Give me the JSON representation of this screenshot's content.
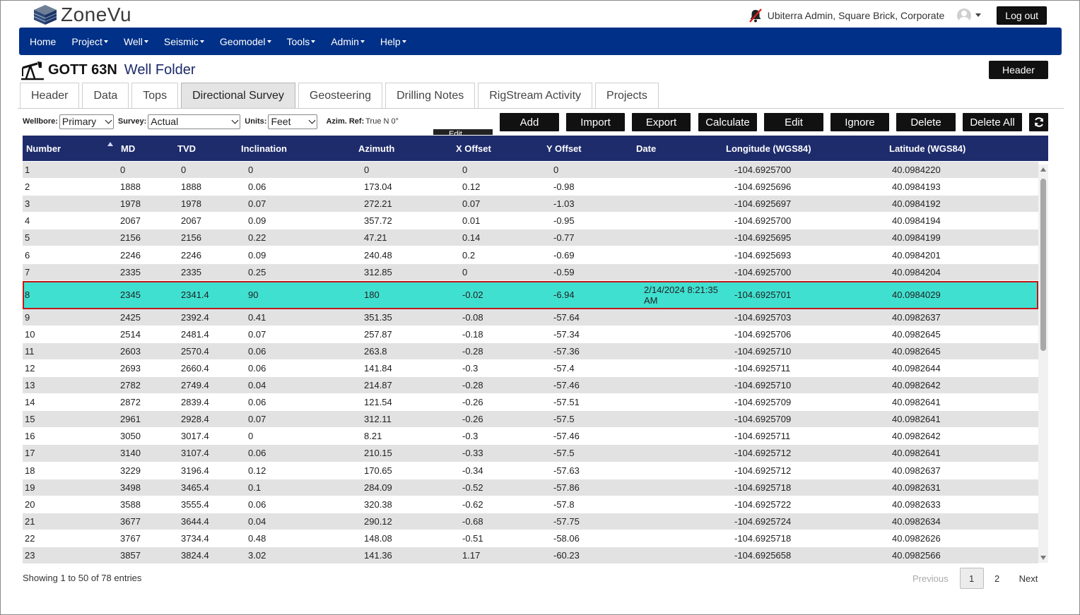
{
  "app": {
    "name": "ZoneVu"
  },
  "user": {
    "name": "Ubiterra Admin, Square Brick, Corporate",
    "logout_label": "Log out"
  },
  "nav": [
    {
      "label": "Home",
      "dropdown": false
    },
    {
      "label": "Project",
      "dropdown": true
    },
    {
      "label": "Well",
      "dropdown": true
    },
    {
      "label": "Seismic",
      "dropdown": true
    },
    {
      "label": "Geomodel",
      "dropdown": true
    },
    {
      "label": "Tools",
      "dropdown": true
    },
    {
      "label": "Admin",
      "dropdown": true
    },
    {
      "label": "Help",
      "dropdown": true
    }
  ],
  "well": {
    "name": "GOTT 63N",
    "folder_label": "Well Folder",
    "header_button": "Header"
  },
  "tabs": [
    {
      "label": "Header",
      "active": false
    },
    {
      "label": "Data",
      "active": false
    },
    {
      "label": "Tops",
      "active": false
    },
    {
      "label": "Directional Survey",
      "active": true
    },
    {
      "label": "Geosteering",
      "active": false
    },
    {
      "label": "Drilling Notes",
      "active": false
    },
    {
      "label": "RigStream Activity",
      "active": false
    },
    {
      "label": "Projects",
      "active": false
    }
  ],
  "filters": {
    "wellbore_label": "Wellbore:",
    "wellbore_value": "Primary",
    "survey_label": "Survey:",
    "survey_value": "Actual",
    "units_label": "Units:",
    "units_value": "Feet",
    "azim_label": "Azim. Ref:",
    "azim_value": "True N 0°",
    "edit_stub": "Edit"
  },
  "actions": [
    "Add",
    "Import",
    "Export",
    "Calculate",
    "Edit",
    "Ignore",
    "Delete",
    "Delete All"
  ],
  "columns": [
    "Number",
    "MD",
    "TVD",
    "Inclination",
    "Azimuth",
    "X Offset",
    "Y Offset",
    "Date",
    "Longitude (WGS84)",
    "Latitude (WGS84)"
  ],
  "rows": [
    [
      "1",
      "0",
      "0",
      "0",
      "0",
      "0",
      "0",
      "",
      "-104.6925700",
      "40.0984220"
    ],
    [
      "2",
      "1888",
      "1888",
      "0.06",
      "173.04",
      "0.12",
      "-0.98",
      "",
      "-104.6925696",
      "40.0984193"
    ],
    [
      "3",
      "1978",
      "1978",
      "0.07",
      "272.21",
      "0.07",
      "-1.03",
      "",
      "-104.6925697",
      "40.0984192"
    ],
    [
      "4",
      "2067",
      "2067",
      "0.09",
      "357.72",
      "0.01",
      "-0.95",
      "",
      "-104.6925700",
      "40.0984194"
    ],
    [
      "5",
      "2156",
      "2156",
      "0.22",
      "47.21",
      "0.14",
      "-0.77",
      "",
      "-104.6925695",
      "40.0984199"
    ],
    [
      "6",
      "2246",
      "2246",
      "0.09",
      "240.48",
      "0.2",
      "-0.69",
      "",
      "-104.6925693",
      "40.0984201"
    ],
    [
      "7",
      "2335",
      "2335",
      "0.25",
      "312.85",
      "0",
      "-0.59",
      "",
      "-104.6925700",
      "40.0984204"
    ],
    [
      "8",
      "2345",
      "2341.4",
      "90",
      "180",
      "-0.02",
      "-6.94",
      "2/14/2024 8:21:35 AM",
      "-104.6925701",
      "40.0984029"
    ],
    [
      "9",
      "2425",
      "2392.4",
      "0.41",
      "351.35",
      "-0.08",
      "-57.64",
      "",
      "-104.6925703",
      "40.0982637"
    ],
    [
      "10",
      "2514",
      "2481.4",
      "0.07",
      "257.87",
      "-0.18",
      "-57.34",
      "",
      "-104.6925706",
      "40.0982645"
    ],
    [
      "11",
      "2603",
      "2570.4",
      "0.06",
      "263.8",
      "-0.28",
      "-57.36",
      "",
      "-104.6925710",
      "40.0982645"
    ],
    [
      "12",
      "2693",
      "2660.4",
      "0.06",
      "141.84",
      "-0.3",
      "-57.4",
      "",
      "-104.6925711",
      "40.0982644"
    ],
    [
      "13",
      "2782",
      "2749.4",
      "0.04",
      "214.87",
      "-0.28",
      "-57.46",
      "",
      "-104.6925710",
      "40.0982642"
    ],
    [
      "14",
      "2872",
      "2839.4",
      "0.06",
      "121.54",
      "-0.26",
      "-57.51",
      "",
      "-104.6925709",
      "40.0982641"
    ],
    [
      "15",
      "2961",
      "2928.4",
      "0.07",
      "312.11",
      "-0.26",
      "-57.5",
      "",
      "-104.6925709",
      "40.0982641"
    ],
    [
      "16",
      "3050",
      "3017.4",
      "0",
      "8.21",
      "-0.3",
      "-57.46",
      "",
      "-104.6925711",
      "40.0982642"
    ],
    [
      "17",
      "3140",
      "3107.4",
      "0.06",
      "210.15",
      "-0.33",
      "-57.5",
      "",
      "-104.6925712",
      "40.0982641"
    ],
    [
      "18",
      "3229",
      "3196.4",
      "0.12",
      "170.65",
      "-0.34",
      "-57.63",
      "",
      "-104.6925712",
      "40.0982637"
    ],
    [
      "19",
      "3498",
      "3465.4",
      "0.1",
      "284.09",
      "-0.52",
      "-57.86",
      "",
      "-104.6925718",
      "40.0982631"
    ],
    [
      "20",
      "3588",
      "3555.4",
      "0.06",
      "320.38",
      "-0.62",
      "-57.8",
      "",
      "-104.6925722",
      "40.0982633"
    ],
    [
      "21",
      "3677",
      "3644.4",
      "0.04",
      "290.12",
      "-0.68",
      "-57.75",
      "",
      "-104.6925724",
      "40.0982634"
    ],
    [
      "22",
      "3767",
      "3734.4",
      "0.48",
      "148.08",
      "-0.51",
      "-58.06",
      "",
      "-104.6925718",
      "40.0982626"
    ],
    [
      "23",
      "3857",
      "3824.4",
      "3.02",
      "141.36",
      "1.17",
      "-60.23",
      "",
      "-104.6925658",
      "40.0982566"
    ]
  ],
  "selected_row": 8,
  "footer": {
    "info": "Showing 1 to 50 of 78 entries",
    "previous": "Previous",
    "pages": [
      "1",
      "2"
    ],
    "current_page": "1",
    "next": "Next"
  },
  "colors": {
    "nav": "#003087",
    "table_header": "#1e2c6c",
    "selected_row": "#40e0d0",
    "selected_border": "#c01818"
  }
}
